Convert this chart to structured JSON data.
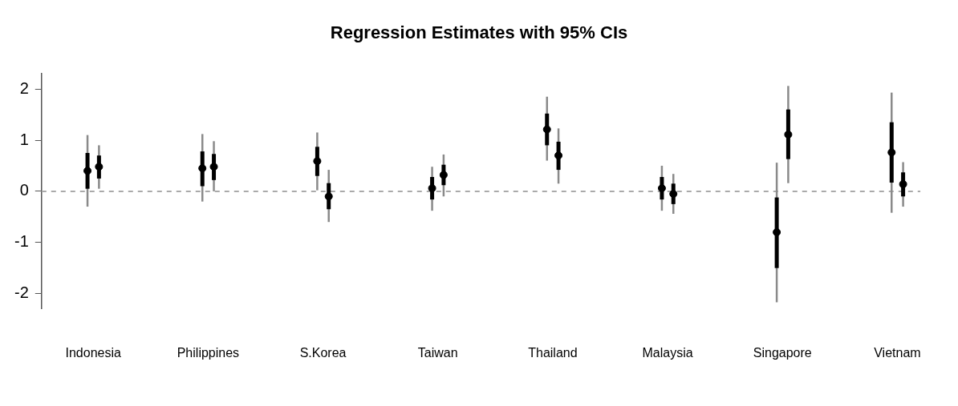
{
  "chart_data": {
    "type": "box",
    "title": "Regression Estimates with 95% CIs",
    "categories": [
      "Indonesia",
      "Philippines",
      "S.Korea",
      "Taiwan",
      "Thailand",
      "Malaysia",
      "Singapore",
      "Vietnam"
    ],
    "series": [
      {
        "color": "#000000",
        "boxes": [
          {
            "low": -0.3,
            "q1": 0.05,
            "median": 0.4,
            "q3": 0.75,
            "high": 1.1
          },
          {
            "low": -0.2,
            "q1": 0.1,
            "median": 0.45,
            "q3": 0.78,
            "high": 1.12
          },
          {
            "low": 0.02,
            "q1": 0.3,
            "median": 0.59,
            "q3": 0.87,
            "high": 1.15
          },
          {
            "low": -0.38,
            "q1": -0.16,
            "median": 0.06,
            "q3": 0.28,
            "high": 0.48
          },
          {
            "low": 0.6,
            "q1": 0.9,
            "median": 1.21,
            "q3": 1.52,
            "high": 1.85
          },
          {
            "low": -0.38,
            "q1": -0.16,
            "median": 0.06,
            "q3": 0.28,
            "high": 0.5
          },
          {
            "low": -2.17,
            "q1": -1.5,
            "median": -0.8,
            "q3": -0.12,
            "high": 0.56
          },
          {
            "low": -0.42,
            "q1": 0.17,
            "median": 0.76,
            "q3": 1.35,
            "high": 1.93
          }
        ]
      },
      {
        "color": "#000000",
        "boxes": [
          {
            "low": 0.05,
            "q1": 0.25,
            "median": 0.48,
            "q3": 0.7,
            "high": 0.9
          },
          {
            "low": 0.0,
            "q1": 0.22,
            "median": 0.48,
            "q3": 0.73,
            "high": 0.98
          },
          {
            "low": -0.6,
            "q1": -0.35,
            "median": -0.1,
            "q3": 0.16,
            "high": 0.42
          },
          {
            "low": -0.1,
            "q1": 0.12,
            "median": 0.32,
            "q3": 0.52,
            "high": 0.72
          },
          {
            "low": 0.15,
            "q1": 0.42,
            "median": 0.7,
            "q3": 0.97,
            "high": 1.23
          },
          {
            "low": -0.44,
            "q1": -0.25,
            "median": -0.05,
            "q3": 0.15,
            "high": 0.34
          },
          {
            "low": 0.16,
            "q1": 0.63,
            "median": 1.11,
            "q3": 1.6,
            "high": 2.06
          },
          {
            "low": -0.3,
            "q1": -0.1,
            "median": 0.14,
            "q3": 0.37,
            "high": 0.57
          }
        ]
      }
    ],
    "ylim": [
      -2.3,
      2.3
    ],
    "yticks": [
      -2,
      -1,
      0,
      1,
      2
    ],
    "ref_lines": [
      {
        "axis": "y",
        "value": 0,
        "color": "#aaaaaa",
        "line_style": "dashed"
      }
    ],
    "grid": false,
    "legend": false,
    "marker": "circle"
  }
}
